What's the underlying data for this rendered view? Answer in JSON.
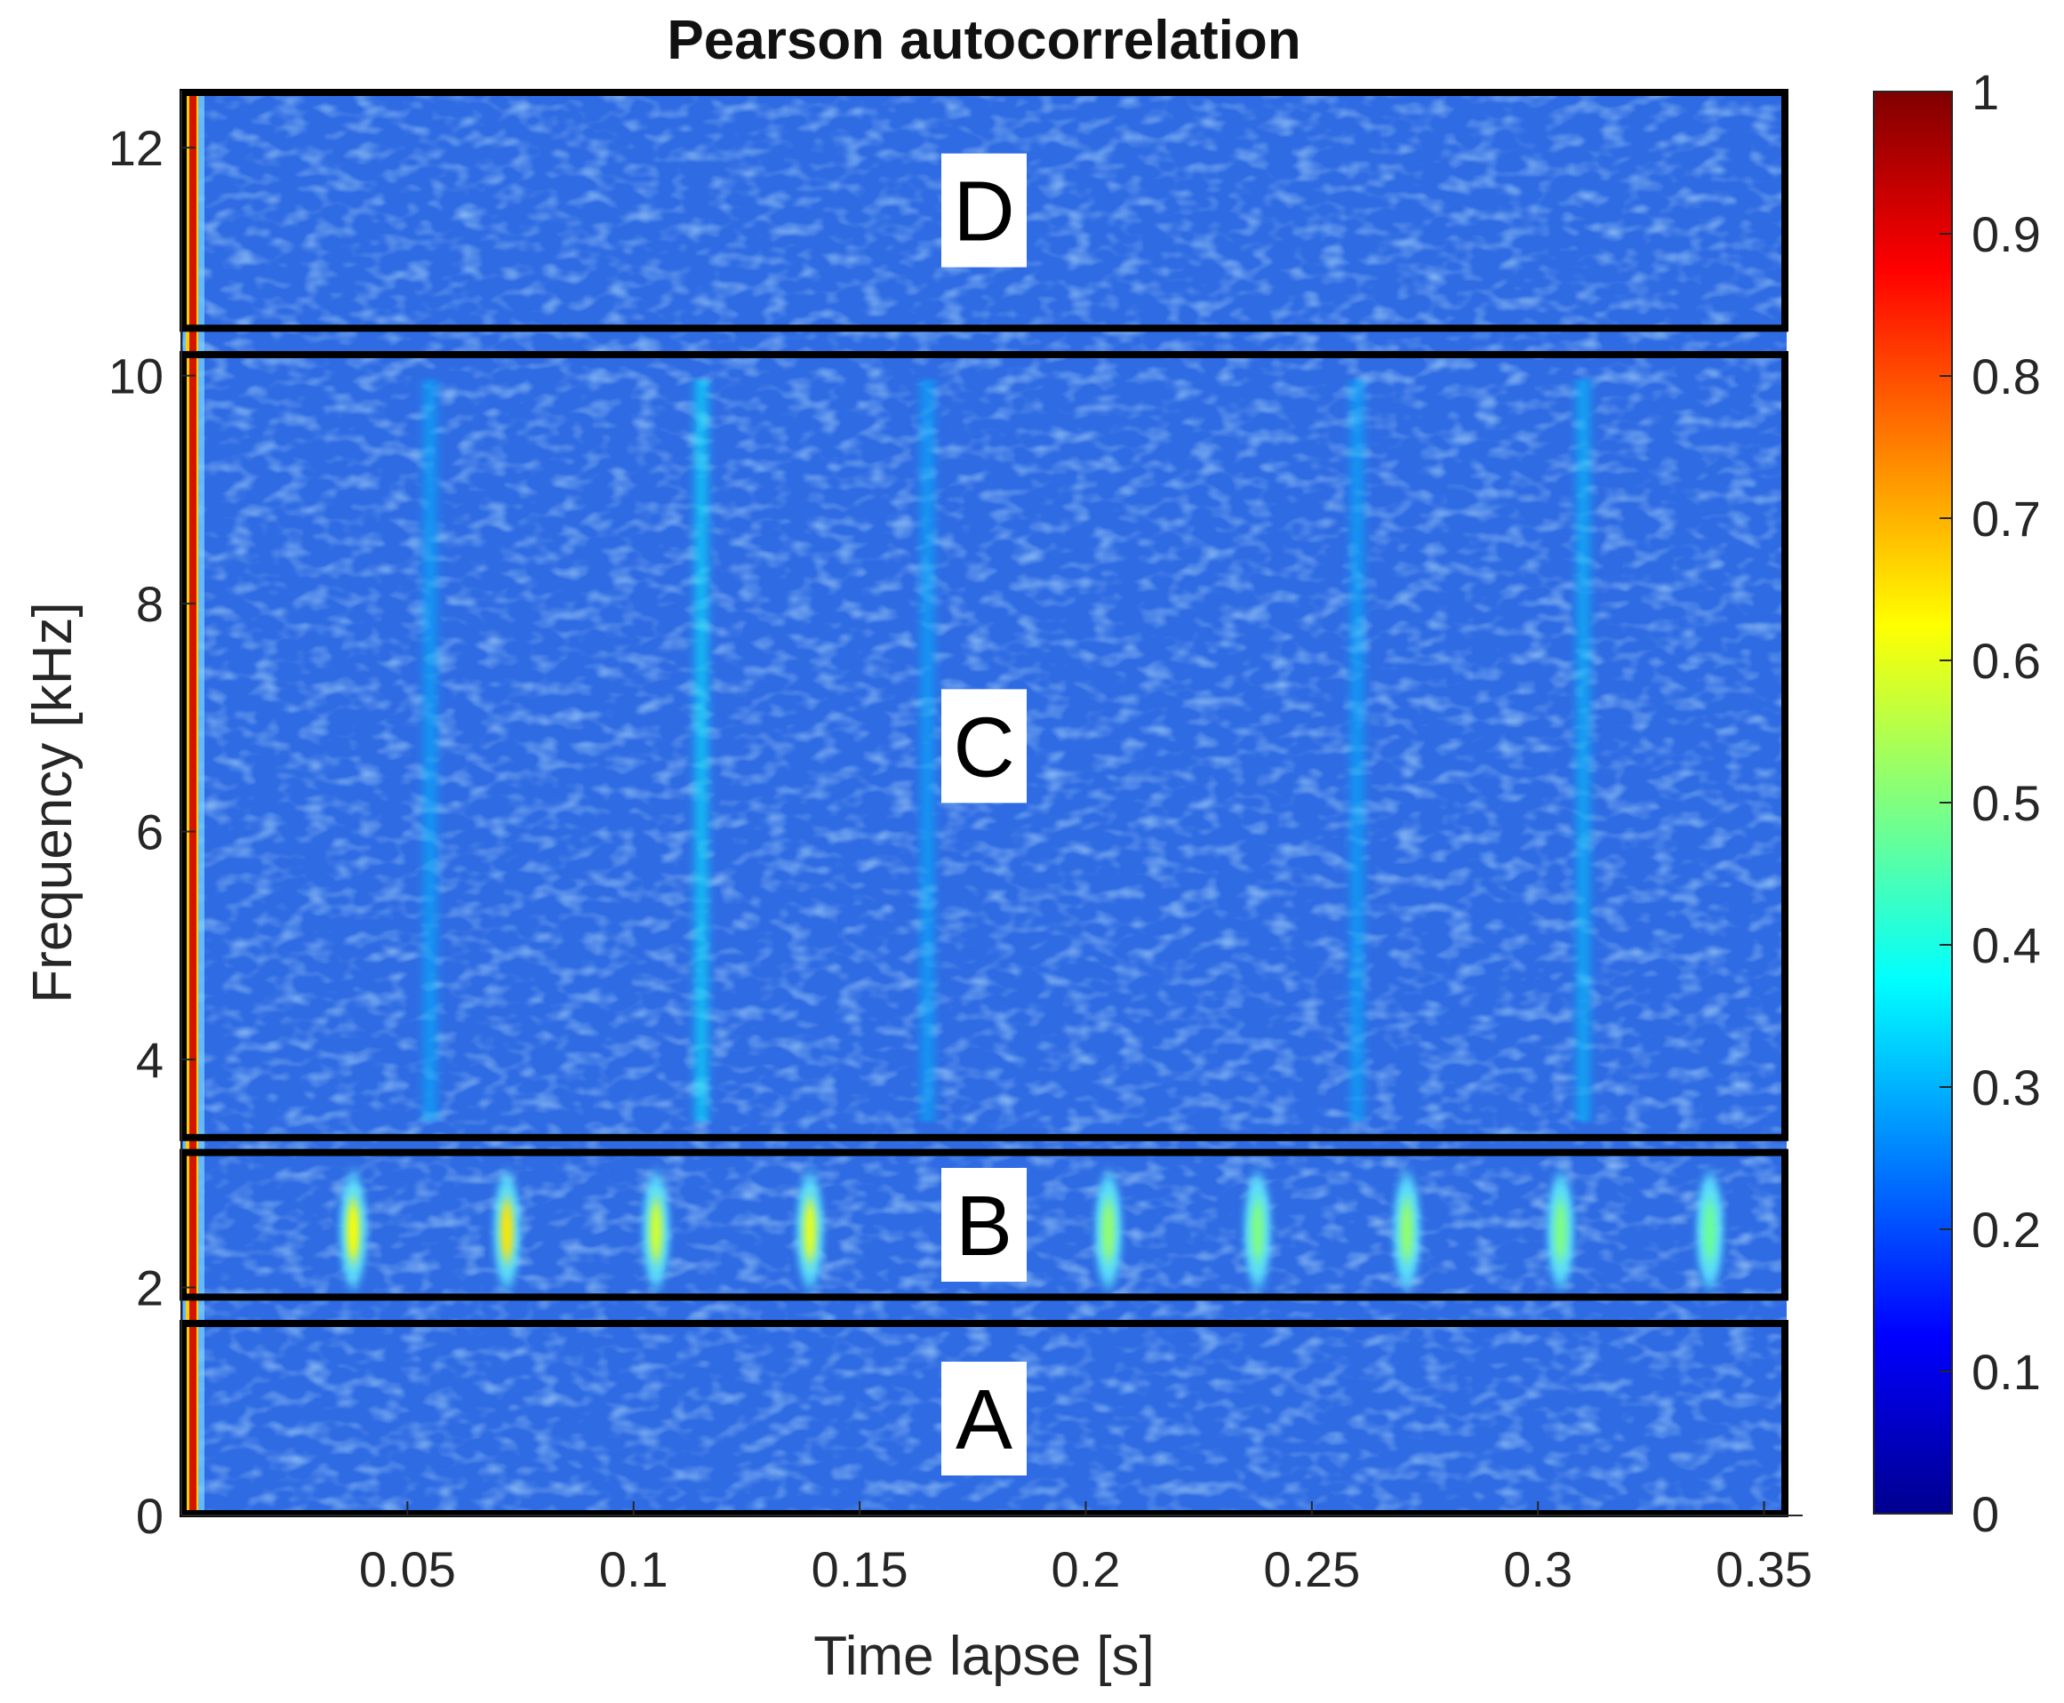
{
  "chart_data": {
    "type": "heatmap",
    "title": "Pearson autocorrelation",
    "xlabel": "Time lapse [s]",
    "ylabel": "Frequency [kHz]",
    "xlim": [
      0,
      0.355
    ],
    "ylim": [
      0,
      12.5
    ],
    "xticks": [
      {
        "value": 0.05,
        "label": "0.05"
      },
      {
        "value": 0.1,
        "label": "0.1"
      },
      {
        "value": 0.15,
        "label": "0.15"
      },
      {
        "value": 0.2,
        "label": "0.2"
      },
      {
        "value": 0.25,
        "label": "0.25"
      },
      {
        "value": 0.3,
        "label": "0.3"
      },
      {
        "value": 0.35,
        "label": "0.35"
      }
    ],
    "yticks": [
      {
        "value": 0,
        "label": "0"
      },
      {
        "value": 2,
        "label": "2"
      },
      {
        "value": 4,
        "label": "4"
      },
      {
        "value": 6,
        "label": "6"
      },
      {
        "value": 8,
        "label": "8"
      },
      {
        "value": 10,
        "label": "10"
      },
      {
        "value": 12,
        "label": "12"
      }
    ],
    "colorbar": {
      "min": 0,
      "max": 1,
      "colormap": "jet",
      "ticks": [
        {
          "value": 0,
          "label": "0"
        },
        {
          "value": 0.1,
          "label": "0.1"
        },
        {
          "value": 0.2,
          "label": "0.2"
        },
        {
          "value": 0.3,
          "label": "0.3"
        },
        {
          "value": 0.4,
          "label": "0.4"
        },
        {
          "value": 0.5,
          "label": "0.5"
        },
        {
          "value": 0.6,
          "label": "0.6"
        },
        {
          "value": 0.7,
          "label": "0.7"
        },
        {
          "value": 0.8,
          "label": "0.8"
        },
        {
          "value": 0.9,
          "label": "0.9"
        },
        {
          "value": 1,
          "label": "1"
        }
      ]
    },
    "background_level": 0.22,
    "lag_zero_level": 1.0,
    "regions": [
      {
        "label": "A",
        "freq_range_khz": [
          0,
          1.7
        ],
        "time_range_s": [
          0,
          0.355
        ]
      },
      {
        "label": "B",
        "freq_range_khz": [
          1.9,
          3.2
        ],
        "time_range_s": [
          0,
          0.355
        ]
      },
      {
        "label": "C",
        "freq_range_khz": [
          3.3,
          10.2
        ],
        "time_range_s": [
          0,
          0.355
        ]
      },
      {
        "label": "D",
        "freq_range_khz": [
          10.4,
          12.5
        ],
        "time_range_s": [
          0,
          0.355
        ]
      }
    ],
    "band_B_peaks": {
      "freq_center_khz": 2.5,
      "times_s": [
        0.038,
        0.072,
        0.105,
        0.139,
        0.205,
        0.238,
        0.271,
        0.305,
        0.338
      ],
      "values": [
        0.62,
        0.65,
        0.58,
        0.6,
        0.52,
        0.5,
        0.52,
        0.5,
        0.48
      ]
    },
    "band_C_streaks": {
      "times_s": [
        0.055,
        0.115,
        0.165,
        0.26,
        0.31
      ],
      "values": [
        0.3,
        0.36,
        0.3,
        0.3,
        0.32
      ]
    }
  }
}
